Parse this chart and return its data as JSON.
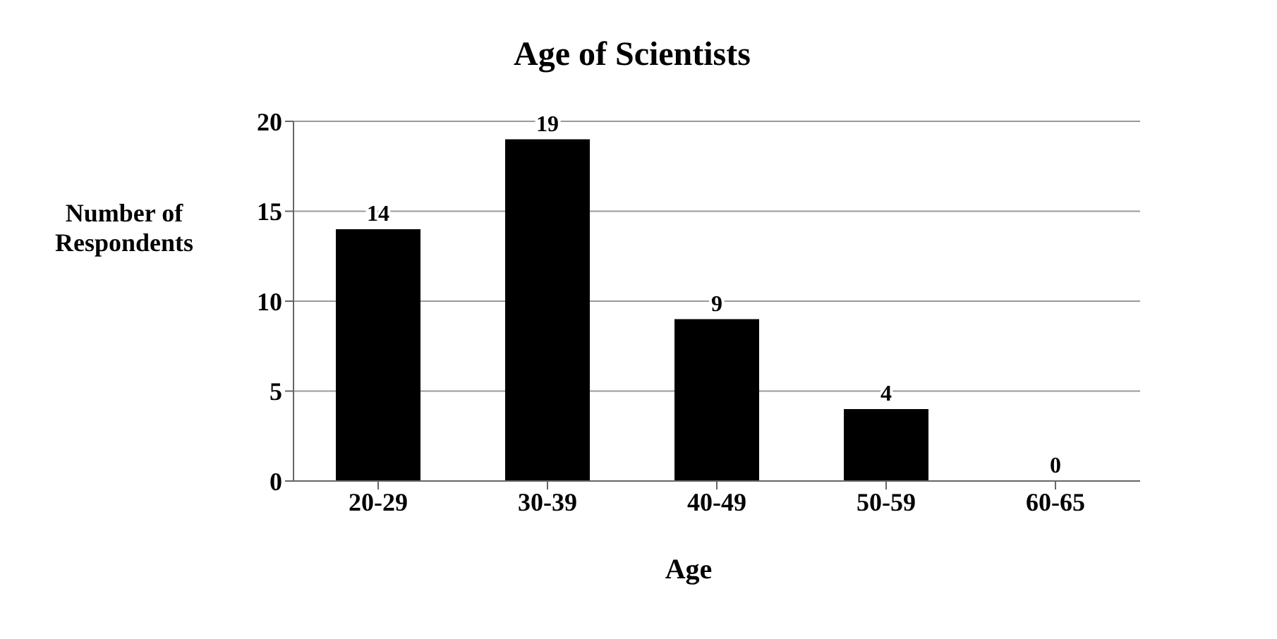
{
  "chart_data": {
    "type": "bar",
    "title": "Age of Scientists",
    "xlabel": "Age",
    "ylabel": "Number of Respondents",
    "categories": [
      "20-29",
      "30-39",
      "40-49",
      "50-59",
      "60-65"
    ],
    "values": [
      14,
      19,
      9,
      4,
      0
    ],
    "color": "#000000",
    "ylim": [
      0,
      20
    ],
    "yticks": [
      0,
      5,
      10,
      15,
      20
    ],
    "grid": "y",
    "data_labels": true
  }
}
